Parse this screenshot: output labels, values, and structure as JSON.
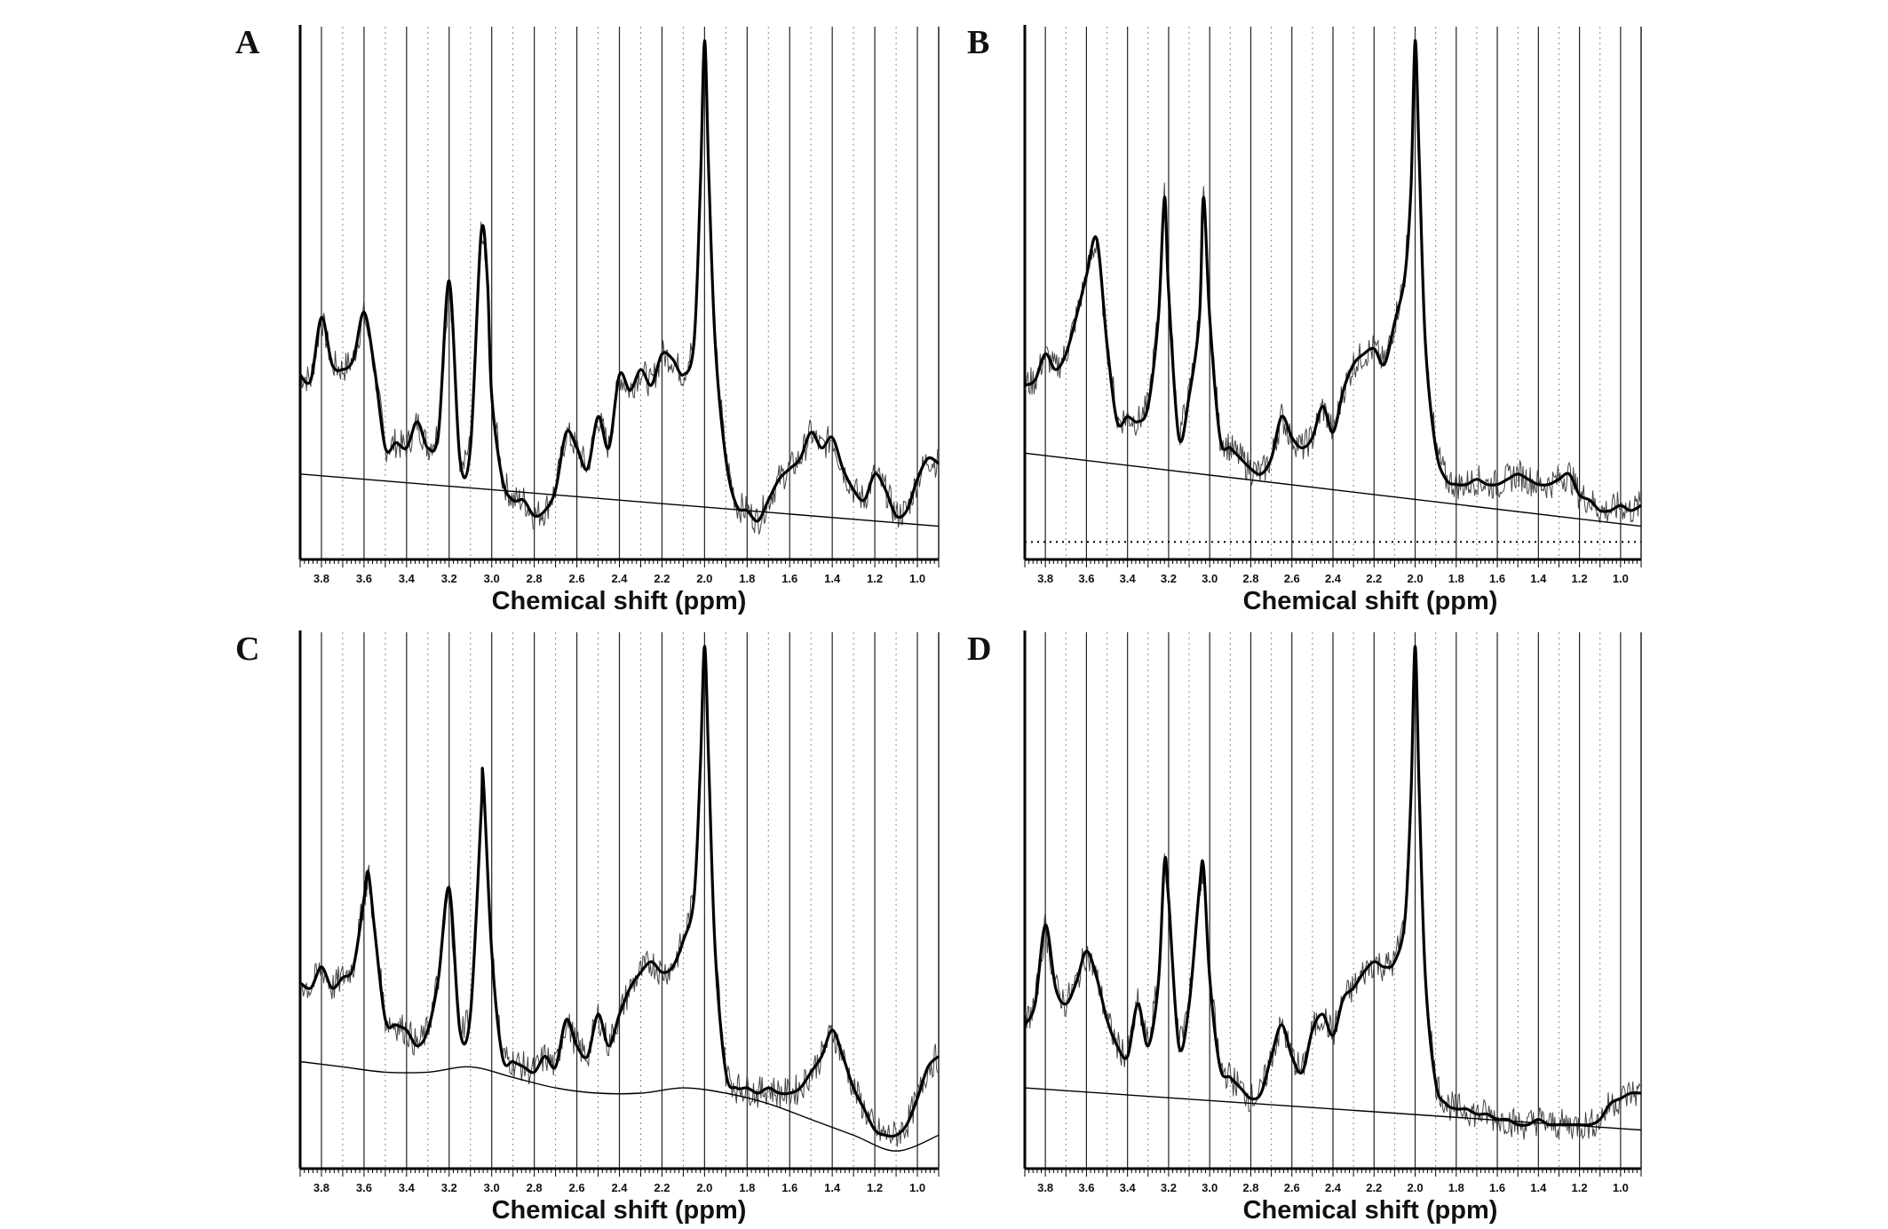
{
  "chart_data": [
    {
      "panel": "A",
      "type": "line",
      "xlabel": "Chemical shift (ppm)",
      "xlim": [
        3.9,
        0.9
      ],
      "ylim": [
        0,
        1
      ],
      "x_ticks": [
        "3.8",
        "3.6",
        "3.4",
        "3.2",
        "3.0",
        "2.8",
        "2.6",
        "2.4",
        "2.2",
        "2.0",
        "1.8",
        "1.6",
        "1.4",
        "1.2",
        "1.0"
      ],
      "series": [
        {
          "style": "fit",
          "x": [
            3.9,
            3.85,
            3.8,
            3.75,
            3.7,
            3.65,
            3.6,
            3.55,
            3.5,
            3.45,
            3.4,
            3.35,
            3.3,
            3.25,
            3.2,
            3.15,
            3.1,
            3.05,
            3.02,
            3.0,
            2.95,
            2.9,
            2.85,
            2.8,
            2.75,
            2.7,
            2.65,
            2.6,
            2.55,
            2.5,
            2.45,
            2.4,
            2.35,
            2.3,
            2.25,
            2.2,
            2.15,
            2.1,
            2.05,
            2.02,
            2.0,
            1.98,
            1.95,
            1.9,
            1.85,
            1.8,
            1.75,
            1.7,
            1.65,
            1.6,
            1.55,
            1.5,
            1.45,
            1.4,
            1.35,
            1.3,
            1.25,
            1.2,
            1.15,
            1.1,
            1.05,
            1.0,
            0.95,
            0.9
          ],
          "y": [
            0.34,
            0.33,
            0.45,
            0.36,
            0.35,
            0.37,
            0.46,
            0.35,
            0.2,
            0.21,
            0.2,
            0.25,
            0.2,
            0.23,
            0.52,
            0.18,
            0.2,
            0.61,
            0.52,
            0.3,
            0.14,
            0.1,
            0.1,
            0.07,
            0.08,
            0.12,
            0.23,
            0.2,
            0.16,
            0.26,
            0.2,
            0.34,
            0.31,
            0.35,
            0.32,
            0.38,
            0.37,
            0.34,
            0.4,
            0.7,
            0.98,
            0.72,
            0.4,
            0.18,
            0.09,
            0.08,
            0.06,
            0.1,
            0.14,
            0.16,
            0.18,
            0.23,
            0.2,
            0.22,
            0.16,
            0.12,
            0.1,
            0.15,
            0.12,
            0.07,
            0.08,
            0.14,
            0.18,
            0.17
          ]
        },
        {
          "style": "baseline",
          "x": [
            3.9,
            0.9
          ],
          "y": [
            0.15,
            0.05
          ]
        }
      ]
    },
    {
      "panel": "B",
      "type": "line",
      "xlabel": "Chemical shift (ppm)",
      "xlim": [
        3.9,
        0.9
      ],
      "ylim": [
        0,
        1
      ],
      "x_ticks": [
        "3.8",
        "3.6",
        "3.4",
        "3.2",
        "3.0",
        "2.8",
        "2.6",
        "2.4",
        "2.2",
        "2.0",
        "1.8",
        "1.6",
        "1.4",
        "1.2",
        "1.0"
      ],
      "series": [
        {
          "style": "fit",
          "x": [
            3.9,
            3.85,
            3.8,
            3.75,
            3.7,
            3.65,
            3.6,
            3.55,
            3.5,
            3.45,
            3.4,
            3.35,
            3.3,
            3.25,
            3.22,
            3.2,
            3.15,
            3.1,
            3.05,
            3.03,
            3.0,
            2.95,
            2.9,
            2.85,
            2.8,
            2.75,
            2.7,
            2.65,
            2.6,
            2.55,
            2.5,
            2.45,
            2.4,
            2.35,
            2.3,
            2.25,
            2.2,
            2.15,
            2.1,
            2.05,
            2.02,
            2.0,
            1.98,
            1.95,
            1.9,
            1.85,
            1.8,
            1.75,
            1.7,
            1.65,
            1.6,
            1.55,
            1.5,
            1.45,
            1.4,
            1.35,
            1.3,
            1.25,
            1.2,
            1.15,
            1.1,
            1.05,
            1.0,
            0.95,
            0.9
          ],
          "y": [
            0.32,
            0.33,
            0.38,
            0.35,
            0.38,
            0.45,
            0.53,
            0.6,
            0.4,
            0.25,
            0.26,
            0.25,
            0.28,
            0.45,
            0.68,
            0.5,
            0.22,
            0.3,
            0.45,
            0.68,
            0.45,
            0.22,
            0.2,
            0.18,
            0.16,
            0.15,
            0.18,
            0.26,
            0.22,
            0.2,
            0.22,
            0.28,
            0.23,
            0.31,
            0.36,
            0.38,
            0.39,
            0.36,
            0.44,
            0.53,
            0.7,
            0.98,
            0.75,
            0.4,
            0.2,
            0.14,
            0.13,
            0.13,
            0.14,
            0.13,
            0.13,
            0.14,
            0.15,
            0.14,
            0.13,
            0.13,
            0.14,
            0.15,
            0.11,
            0.1,
            0.08,
            0.08,
            0.09,
            0.08,
            0.09
          ]
        },
        {
          "style": "baseline",
          "x": [
            3.9,
            0.9
          ],
          "y": [
            0.19,
            0.05
          ]
        },
        {
          "style": "dotted",
          "x": [
            3.9,
            0.9
          ],
          "y": [
            0.02,
            0.02
          ]
        }
      ]
    },
    {
      "panel": "C",
      "type": "line",
      "xlabel": "Chemical shift (ppm)",
      "xlim": [
        3.9,
        0.9
      ],
      "ylim": [
        0,
        1
      ],
      "x_ticks": [
        "3.8",
        "3.6",
        "3.4",
        "3.2",
        "3.0",
        "2.8",
        "2.6",
        "2.4",
        "2.2",
        "2.0",
        "1.8",
        "1.6",
        "1.4",
        "1.2",
        "1.0"
      ],
      "series": [
        {
          "style": "fit",
          "x": [
            3.9,
            3.85,
            3.8,
            3.75,
            3.7,
            3.65,
            3.6,
            3.58,
            3.55,
            3.5,
            3.45,
            3.4,
            3.35,
            3.3,
            3.25,
            3.2,
            3.15,
            3.1,
            3.05,
            3.04,
            3.0,
            2.95,
            2.9,
            2.85,
            2.8,
            2.75,
            2.7,
            2.65,
            2.6,
            2.55,
            2.5,
            2.45,
            2.4,
            2.35,
            2.3,
            2.25,
            2.2,
            2.15,
            2.1,
            2.05,
            2.02,
            2.0,
            1.98,
            1.95,
            1.9,
            1.85,
            1.8,
            1.75,
            1.7,
            1.65,
            1.6,
            1.55,
            1.5,
            1.45,
            1.4,
            1.35,
            1.3,
            1.25,
            1.2,
            1.15,
            1.1,
            1.05,
            1.0,
            0.95,
            0.9
          ],
          "y": [
            0.34,
            0.33,
            0.37,
            0.33,
            0.35,
            0.37,
            0.5,
            0.55,
            0.44,
            0.27,
            0.26,
            0.25,
            0.22,
            0.25,
            0.35,
            0.52,
            0.25,
            0.28,
            0.66,
            0.73,
            0.4,
            0.2,
            0.19,
            0.18,
            0.17,
            0.2,
            0.18,
            0.27,
            0.22,
            0.2,
            0.28,
            0.22,
            0.28,
            0.33,
            0.36,
            0.38,
            0.36,
            0.37,
            0.42,
            0.5,
            0.75,
            0.98,
            0.75,
            0.4,
            0.17,
            0.14,
            0.14,
            0.13,
            0.14,
            0.13,
            0.13,
            0.14,
            0.17,
            0.2,
            0.25,
            0.2,
            0.14,
            0.1,
            0.06,
            0.05,
            0.05,
            0.07,
            0.12,
            0.18,
            0.2
          ]
        },
        {
          "style": "baseline",
          "x": [
            3.9,
            3.7,
            3.5,
            3.3,
            3.1,
            2.9,
            2.7,
            2.5,
            2.3,
            2.1,
            1.9,
            1.7,
            1.5,
            1.3,
            1.1,
            0.9
          ],
          "y": [
            0.19,
            0.18,
            0.17,
            0.17,
            0.18,
            0.16,
            0.14,
            0.13,
            0.13,
            0.14,
            0.13,
            0.11,
            0.08,
            0.05,
            0.02,
            0.05
          ]
        }
      ]
    },
    {
      "panel": "D",
      "type": "line",
      "xlabel": "Chemical shift (ppm)",
      "xlim": [
        3.9,
        0.9
      ],
      "ylim": [
        0,
        1
      ],
      "x_ticks": [
        "3.8",
        "3.6",
        "3.4",
        "3.2",
        "3.0",
        "2.8",
        "2.6",
        "2.4",
        "2.2",
        "2.0",
        "1.8",
        "1.6",
        "1.4",
        "1.2",
        "1.0"
      ],
      "series": [
        {
          "style": "fit",
          "x": [
            3.9,
            3.85,
            3.8,
            3.75,
            3.7,
            3.65,
            3.6,
            3.55,
            3.5,
            3.45,
            3.4,
            3.35,
            3.3,
            3.25,
            3.22,
            3.2,
            3.15,
            3.1,
            3.05,
            3.03,
            3.0,
            2.95,
            2.9,
            2.85,
            2.8,
            2.75,
            2.7,
            2.65,
            2.6,
            2.55,
            2.5,
            2.45,
            2.4,
            2.35,
            2.3,
            2.25,
            2.2,
            2.15,
            2.1,
            2.05,
            2.02,
            2.0,
            1.98,
            1.95,
            1.9,
            1.85,
            1.8,
            1.75,
            1.7,
            1.65,
            1.6,
            1.55,
            1.5,
            1.45,
            1.4,
            1.35,
            1.3,
            1.25,
            1.2,
            1.15,
            1.1,
            1.05,
            1.0,
            0.95,
            0.9
          ],
          "y": [
            0.26,
            0.3,
            0.45,
            0.33,
            0.3,
            0.34,
            0.4,
            0.35,
            0.27,
            0.22,
            0.2,
            0.3,
            0.22,
            0.34,
            0.57,
            0.5,
            0.22,
            0.3,
            0.52,
            0.56,
            0.35,
            0.18,
            0.16,
            0.14,
            0.12,
            0.13,
            0.2,
            0.26,
            0.2,
            0.17,
            0.25,
            0.28,
            0.24,
            0.31,
            0.33,
            0.36,
            0.38,
            0.37,
            0.38,
            0.46,
            0.7,
            0.98,
            0.7,
            0.35,
            0.15,
            0.11,
            0.1,
            0.1,
            0.09,
            0.09,
            0.08,
            0.08,
            0.07,
            0.07,
            0.08,
            0.07,
            0.07,
            0.07,
            0.07,
            0.07,
            0.08,
            0.11,
            0.12,
            0.13,
            0.13
          ]
        },
        {
          "style": "baseline",
          "x": [
            3.9,
            0.9
          ],
          "y": [
            0.14,
            0.06
          ]
        }
      ]
    }
  ]
}
